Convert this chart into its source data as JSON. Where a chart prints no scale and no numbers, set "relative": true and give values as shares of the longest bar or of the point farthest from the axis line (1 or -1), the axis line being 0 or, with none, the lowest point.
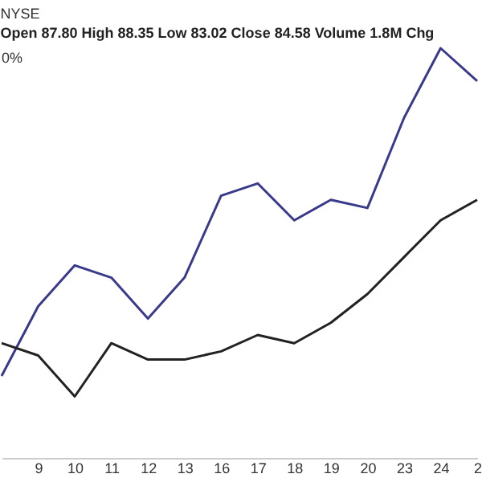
{
  "chart_data": {
    "type": "line",
    "title": "NYSE",
    "subtitle": "Open 87.80 High 88.35 Low 83.02 Close 84.58 Volume 1.8M Chg",
    "annotations": [
      "0%"
    ],
    "relative": true,
    "grid": false,
    "legend": false,
    "marker": "none",
    "line_style": "solid",
    "categories": [
      null,
      "9",
      "10",
      "11",
      "12",
      "13",
      "16",
      "17",
      "18",
      "19",
      "20",
      "23",
      "24",
      "2"
    ],
    "series": [
      {
        "color": "#3a3a8c",
        "values": [
          0.2,
          0.37,
          0.47,
          0.44,
          0.34,
          0.44,
          0.64,
          0.67,
          0.58,
          0.63,
          0.61,
          0.83,
          1,
          0.92
        ]
      },
      {
        "color": "#222222",
        "values": [
          0.28,
          0.25,
          0.15,
          0.28,
          0.24,
          0.24,
          0.26,
          0.3,
          0.28,
          0.33,
          0.4,
          0.49,
          0.58,
          0.63
        ]
      }
    ]
  }
}
